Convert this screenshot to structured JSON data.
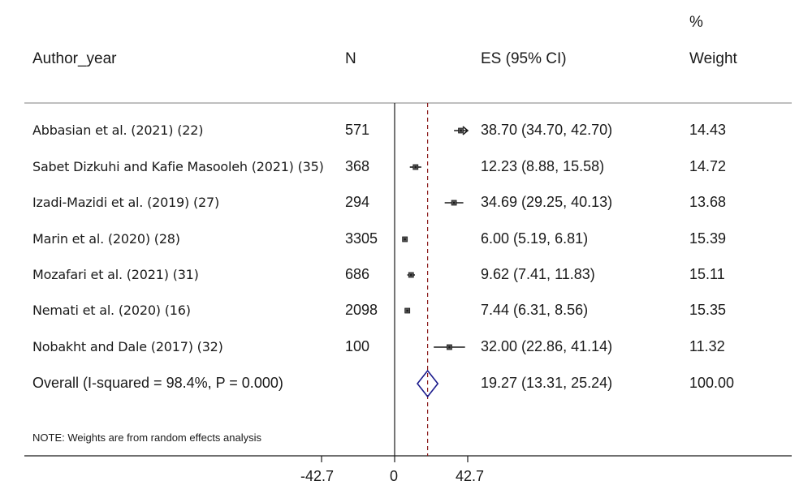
{
  "header": {
    "author": "Author_year",
    "n": "N",
    "es": "ES (95% CI)",
    "weight_pct": "%",
    "weight": "Weight"
  },
  "chart_data": {
    "type": "forest",
    "x_ticks": [
      "-42.7",
      "0",
      "42.7"
    ],
    "xlim": [
      -42.7,
      42.7
    ],
    "null_line": 0,
    "pooled_line": 19.27,
    "studies": [
      {
        "label": "Abbasian et al. (2021) (22)",
        "n": "571",
        "es": 38.7,
        "lo": 34.7,
        "hi": 42.7,
        "es_text": "38.70 (34.70, 42.70)",
        "weight": "14.43",
        "arrow_right": true
      },
      {
        "label": "Sabet Dizkuhi and Kafie Masooleh (2021) (35)",
        "n": "368",
        "es": 12.23,
        "lo": 8.88,
        "hi": 15.58,
        "es_text": "12.23 (8.88, 15.58)",
        "weight": "14.72",
        "arrow_right": false
      },
      {
        "label": "Izadi-Mazidi et al. (2019) (27)",
        "n": "294",
        "es": 34.69,
        "lo": 29.25,
        "hi": 40.13,
        "es_text": "34.69 (29.25, 40.13)",
        "weight": "13.68",
        "arrow_right": false
      },
      {
        "label": "Marin et al. (2020) (28)",
        "n": "3305",
        "es": 6.0,
        "lo": 5.19,
        "hi": 6.81,
        "es_text": "6.00 (5.19, 6.81)",
        "weight": "15.39",
        "arrow_right": false
      },
      {
        "label": "Mozafari et al. (2021) (31)",
        "n": "686",
        "es": 9.62,
        "lo": 7.41,
        "hi": 11.83,
        "es_text": "9.62 (7.41, 11.83)",
        "weight": "15.11",
        "arrow_right": false
      },
      {
        "label": "Nemati et al. (2020) (16)",
        "n": "2098",
        "es": 7.44,
        "lo": 6.31,
        "hi": 8.56,
        "es_text": "7.44 (6.31, 8.56)",
        "weight": "15.35",
        "arrow_right": false
      },
      {
        "label": "Nobakht and Dale (2017) (32)",
        "n": "100",
        "es": 32.0,
        "lo": 22.86,
        "hi": 41.14,
        "es_text": "32.00 (22.86, 41.14)",
        "weight": "11.32",
        "arrow_right": false
      }
    ],
    "overall": {
      "label": "Overall  (I-squared = 98.4%,  P = 0.000)",
      "es": 19.27,
      "lo": 13.31,
      "hi": 25.24,
      "es_text": "19.27 (13.31, 25.24)",
      "weight": "100.00"
    },
    "note": "NOTE: Weights are from random effects analysis",
    "colors": {
      "ref_line": "#8b1a1a",
      "diamond": "#1a1a8c",
      "ink": "#1a1a1a",
      "rule": "#999999"
    }
  }
}
